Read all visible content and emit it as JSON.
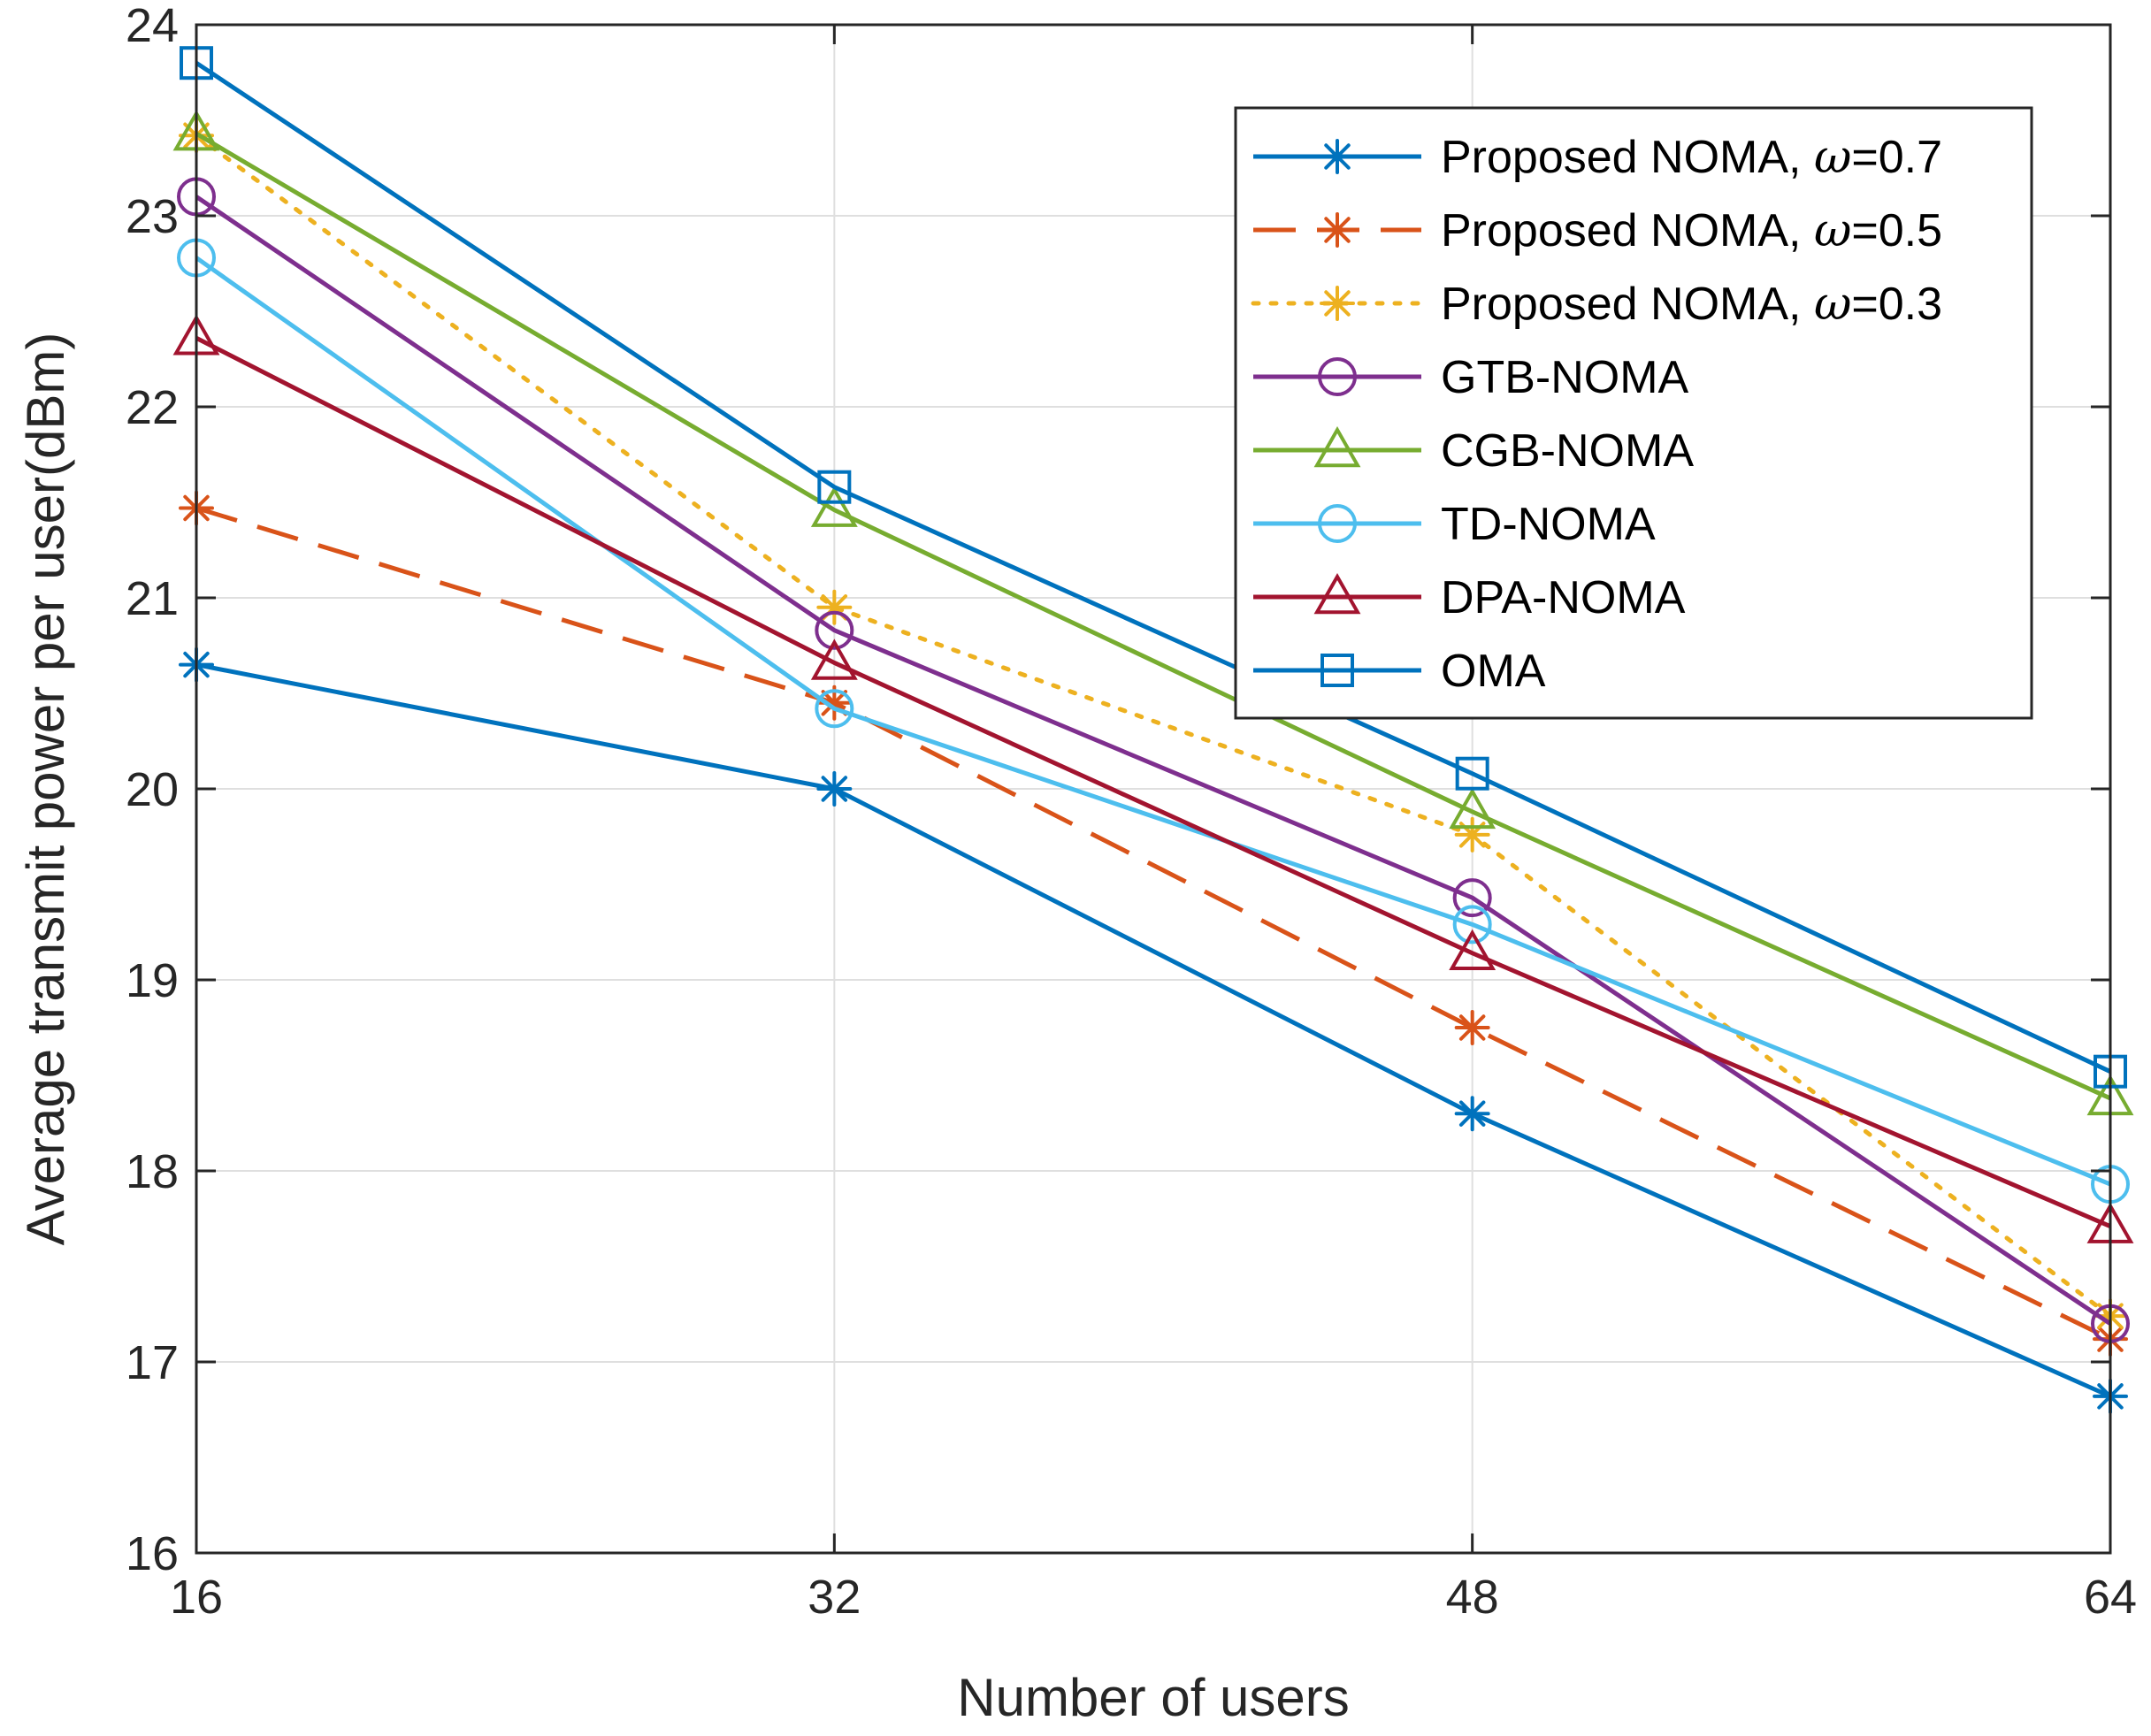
{
  "chart_data": {
    "type": "line",
    "title": "",
    "xlabel": "Number of users",
    "ylabel": "Average transmit power per user(dBm)",
    "x": [
      16,
      32,
      48,
      64
    ],
    "xlim": [
      16,
      64
    ],
    "ylim": [
      16,
      24
    ],
    "xticks": [
      "16",
      "32",
      "48",
      "64"
    ],
    "yticks": [
      "16",
      "17",
      "18",
      "19",
      "20",
      "21",
      "22",
      "23",
      "24"
    ],
    "grid": true,
    "legend_position": "top-right",
    "series": [
      {
        "name": "Proposed NOMA, ω=0.7",
        "label_prefix": "Proposed NOMA, ",
        "label_symbol": "ω",
        "label_suffix": "=0.7",
        "values": [
          20.65,
          20.0,
          18.3,
          16.82
        ],
        "color": "#0072BD",
        "dash": "solid",
        "marker": "asterisk"
      },
      {
        "name": "Proposed NOMA, ω=0.5",
        "label_prefix": "Proposed NOMA, ",
        "label_symbol": "ω",
        "label_suffix": "=0.5",
        "values": [
          21.47,
          20.45,
          18.75,
          17.12
        ],
        "color": "#D95319",
        "dash": "dashed",
        "marker": "asterisk"
      },
      {
        "name": "Proposed NOMA, ω=0.3",
        "label_prefix": "Proposed NOMA, ",
        "label_symbol": "ω",
        "label_suffix": "=0.3",
        "values": [
          23.42,
          20.95,
          19.76,
          17.24
        ],
        "color": "#EDB120",
        "dash": "dotted",
        "marker": "asterisk"
      },
      {
        "name": "GTB-NOMA",
        "label_prefix": "GTB-NOMA",
        "label_symbol": "",
        "label_suffix": "",
        "values": [
          23.1,
          20.83,
          19.43,
          17.2
        ],
        "color": "#7E2F8E",
        "dash": "solid",
        "marker": "circle"
      },
      {
        "name": "CGB-NOMA",
        "label_prefix": "CGB-NOMA",
        "label_symbol": "",
        "label_suffix": "",
        "values": [
          23.43,
          21.46,
          19.88,
          18.38
        ],
        "color": "#77AC30",
        "dash": "solid",
        "marker": "triangle"
      },
      {
        "name": "TD-NOMA",
        "label_prefix": "TD-NOMA",
        "label_symbol": "",
        "label_suffix": "",
        "values": [
          22.78,
          20.42,
          19.29,
          17.93
        ],
        "color": "#4DBEEE",
        "dash": "solid",
        "marker": "circle"
      },
      {
        "name": "DPA-NOMA",
        "label_prefix": "DPA-NOMA",
        "label_symbol": "",
        "label_suffix": "",
        "values": [
          22.36,
          20.66,
          19.14,
          17.71
        ],
        "color": "#A2142F",
        "dash": "solid",
        "marker": "triangle"
      },
      {
        "name": "OMA",
        "label_prefix": "OMA",
        "label_symbol": "",
        "label_suffix": "",
        "values": [
          23.8,
          21.58,
          20.08,
          18.52
        ],
        "color": "#0072BD",
        "dash": "solid",
        "marker": "square"
      }
    ]
  }
}
